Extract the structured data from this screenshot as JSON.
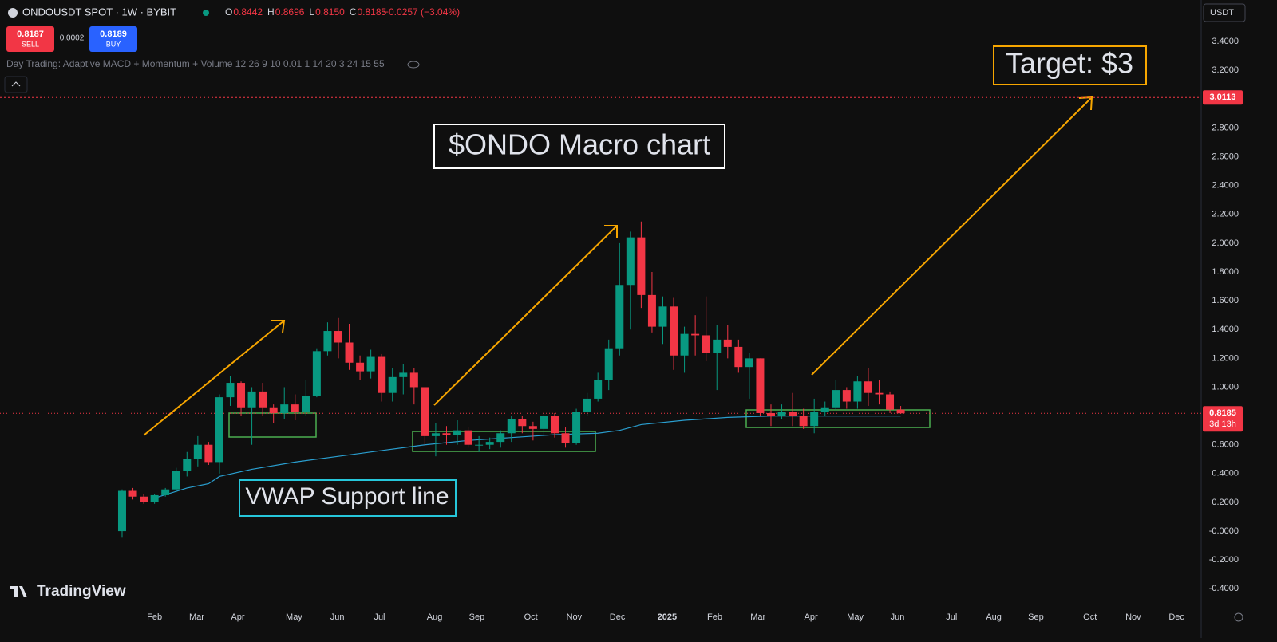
{
  "header": {
    "symbol": "ONDOUSDT SPOT · 1W · BYBIT",
    "ohlc": [
      {
        "key": "O",
        "text": "0.8442"
      },
      {
        "key": "H",
        "text": "0.8696"
      },
      {
        "key": "L",
        "text": "0.8150"
      },
      {
        "key": "C",
        "text": "0.8185"
      }
    ],
    "change": "−0.0257 (−3.04%)",
    "sell": {
      "price": "0.8187",
      "label": "SELL"
    },
    "spread": "0.0002",
    "buy": {
      "price": "0.8189",
      "label": "BUY"
    },
    "indicator": "Day Trading: Adaptive MACD + Momentum + Volume 12 26 9 10 0.01 1 14 20 3 24 15 55",
    "currency": "USDT",
    "logo": "TradingView"
  },
  "chart_data": {
    "type": "candlestick",
    "annotations": {
      "title": "$ONDO Macro chart",
      "target": "Target: $3",
      "vwap": "VWAP Support line"
    },
    "x": [
      0,
      1,
      2,
      3,
      4,
      5,
      6,
      7,
      8,
      9,
      10,
      11,
      12,
      13,
      14,
      15,
      16,
      17,
      18,
      19,
      20,
      21,
      22,
      23,
      24,
      25,
      26,
      27,
      28,
      29,
      30,
      31,
      32,
      33,
      34,
      35,
      36,
      37,
      38,
      39,
      40,
      41,
      42,
      43,
      44,
      45,
      46,
      47,
      48,
      49,
      50,
      51,
      52,
      53,
      54,
      55,
      56,
      57,
      58,
      59,
      60,
      61,
      62,
      63,
      64,
      65,
      66,
      67,
      68,
      69,
      70,
      71,
      72
    ],
    "open": [
      0.0,
      0.28,
      0.24,
      0.2,
      0.25,
      0.29,
      0.42,
      0.5,
      0.6,
      0.48,
      0.93,
      1.03,
      0.86,
      0.97,
      0.86,
      0.82,
      0.88,
      0.83,
      0.94,
      1.25,
      1.39,
      1.31,
      1.17,
      1.11,
      1.21,
      0.96,
      1.07,
      1.1,
      1.0,
      0.66,
      0.68,
      0.67,
      0.7,
      0.6,
      0.6,
      0.62,
      0.68,
      0.78,
      0.73,
      0.71,
      0.8,
      0.68,
      0.61,
      0.83,
      0.92,
      1.05,
      1.27,
      1.71,
      2.04,
      1.64,
      1.42,
      1.56,
      1.22,
      1.37,
      1.36,
      1.24,
      1.33,
      1.28,
      1.14,
      1.2,
      0.82,
      0.8,
      0.83,
      0.8,
      0.73,
      0.83,
      0.86,
      0.98,
      0.9,
      1.04,
      0.96,
      0.95,
      0.8442
    ],
    "high": [
      0.29,
      0.3,
      0.26,
      0.26,
      0.3,
      0.44,
      0.55,
      0.66,
      0.62,
      0.95,
      1.08,
      1.04,
      1.0,
      1.03,
      0.88,
      1.0,
      0.95,
      1.05,
      1.27,
      1.45,
      1.48,
      1.44,
      1.22,
      1.26,
      1.23,
      1.13,
      1.16,
      1.13,
      1.0,
      0.75,
      0.73,
      0.77,
      0.72,
      0.66,
      0.65,
      0.7,
      0.8,
      0.8,
      0.76,
      0.82,
      0.82,
      0.72,
      0.85,
      0.96,
      1.1,
      1.33,
      2.0,
      2.08,
      2.15,
      1.8,
      1.63,
      1.62,
      1.42,
      1.5,
      1.63,
      1.43,
      1.43,
      1.33,
      1.24,
      1.2,
      0.88,
      0.88,
      0.96,
      0.85,
      0.92,
      0.9,
      1.05,
      1.0,
      1.08,
      1.13,
      1.05,
      0.97,
      0.8696
    ],
    "low": [
      -0.04,
      0.22,
      0.19,
      0.19,
      0.24,
      0.27,
      0.38,
      0.45,
      0.46,
      0.4,
      0.87,
      0.8,
      0.6,
      0.8,
      0.75,
      0.78,
      0.77,
      0.8,
      0.93,
      1.22,
      1.2,
      1.12,
      1.05,
      1.06,
      0.9,
      0.9,
      0.95,
      0.88,
      0.6,
      0.52,
      0.6,
      0.6,
      0.58,
      0.55,
      0.57,
      0.58,
      0.62,
      0.68,
      0.63,
      0.66,
      0.65,
      0.58,
      0.6,
      0.8,
      0.9,
      0.98,
      1.22,
      1.4,
      1.55,
      1.38,
      1.3,
      1.12,
      1.1,
      1.22,
      1.18,
      0.98,
      1.2,
      1.1,
      0.92,
      0.8,
      0.73,
      0.78,
      0.73,
      0.71,
      0.68,
      0.8,
      0.84,
      0.85,
      0.85,
      0.87,
      0.88,
      0.82,
      0.815
    ],
    "close": [
      0.28,
      0.24,
      0.2,
      0.25,
      0.29,
      0.42,
      0.5,
      0.6,
      0.48,
      0.93,
      1.03,
      0.86,
      0.97,
      0.86,
      0.82,
      0.88,
      0.83,
      0.94,
      1.25,
      1.39,
      1.31,
      1.17,
      1.11,
      1.21,
      0.96,
      1.07,
      1.1,
      1.0,
      0.66,
      0.68,
      0.67,
      0.7,
      0.6,
      0.6,
      0.62,
      0.68,
      0.78,
      0.73,
      0.71,
      0.8,
      0.68,
      0.61,
      0.83,
      0.92,
      1.05,
      1.27,
      1.71,
      2.04,
      1.64,
      1.42,
      1.56,
      1.22,
      1.37,
      1.36,
      1.24,
      1.33,
      1.28,
      1.14,
      1.2,
      0.82,
      0.8,
      0.83,
      0.8,
      0.73,
      0.83,
      0.86,
      0.98,
      0.9,
      1.04,
      0.96,
      0.95,
      0.8442,
      0.8185
    ],
    "up_color": "#089981",
    "down_color": "#f23645",
    "vwap": {
      "x": [
        3,
        6,
        8,
        9,
        12,
        16,
        20,
        24,
        28,
        32,
        36,
        40,
        44,
        46,
        48,
        52,
        56,
        60,
        64,
        68,
        72
      ],
      "values": [
        0.23,
        0.3,
        0.33,
        0.38,
        0.43,
        0.48,
        0.52,
        0.56,
        0.6,
        0.63,
        0.65,
        0.67,
        0.68,
        0.7,
        0.74,
        0.77,
        0.79,
        0.8,
        0.8,
        0.8,
        0.8
      ],
      "color": "#2a9fd0"
    },
    "target_line": 3.0113,
    "last_price": 0.8185,
    "countdown": "3d 13h",
    "xlim": [
      -11.29,
      99.78
    ],
    "ylim": [
      -0.52,
      3.688
    ],
    "grid": false,
    "yticks": [
      {
        "value": 3.4,
        "label": "3.4000"
      },
      {
        "value": 3.2,
        "label": "3.2000"
      },
      {
        "value": 2.8,
        "label": "2.8000"
      },
      {
        "value": 2.6,
        "label": "2.6000"
      },
      {
        "value": 2.4,
        "label": "2.4000"
      },
      {
        "value": 2.2,
        "label": "2.2000"
      },
      {
        "value": 2.0,
        "label": "2.0000"
      },
      {
        "value": 1.8,
        "label": "1.8000"
      },
      {
        "value": 1.6,
        "label": "1.6000"
      },
      {
        "value": 1.4,
        "label": "1.4000"
      },
      {
        "value": 1.2,
        "label": "1.2000"
      },
      {
        "value": 1.0,
        "label": "1.0000"
      },
      {
        "value": 0.6,
        "label": "0.6000"
      },
      {
        "value": 0.4,
        "label": "0.4000"
      },
      {
        "value": 0.2,
        "label": "0.2000"
      },
      {
        "value": 0,
        "label": "-0.0000"
      },
      {
        "value": -0.2,
        "label": "-0.2000"
      },
      {
        "value": -0.4,
        "label": "-0.4000"
      }
    ],
    "xticks": [
      {
        "value": 3.0,
        "label": "Feb"
      },
      {
        "value": 6.9,
        "label": "Mar"
      },
      {
        "value": 10.7,
        "label": "Apr"
      },
      {
        "value": 15.9,
        "label": "May"
      },
      {
        "value": 19.9,
        "label": "Jun"
      },
      {
        "value": 23.8,
        "label": "Jul"
      },
      {
        "value": 28.9,
        "label": "Aug"
      },
      {
        "value": 32.8,
        "label": "Sep"
      },
      {
        "value": 37.8,
        "label": "Oct"
      },
      {
        "value": 41.8,
        "label": "Nov"
      },
      {
        "value": 45.8,
        "label": "Dec"
      },
      {
        "value": 50.4,
        "label": "2025"
      },
      {
        "value": 54.8,
        "label": "Feb"
      },
      {
        "value": 58.8,
        "label": "Mar"
      },
      {
        "value": 63.7,
        "label": "Apr"
      },
      {
        "value": 67.8,
        "label": "May"
      },
      {
        "value": 71.7,
        "label": "Jun"
      },
      {
        "value": 76.7,
        "label": "Jul"
      },
      {
        "value": 80.6,
        "label": "Aug"
      },
      {
        "value": 84.5,
        "label": "Sep"
      },
      {
        "value": 89.5,
        "label": "Oct"
      },
      {
        "value": 93.5,
        "label": "Nov"
      },
      {
        "value": 97.5,
        "label": "Dec"
      }
    ]
  }
}
